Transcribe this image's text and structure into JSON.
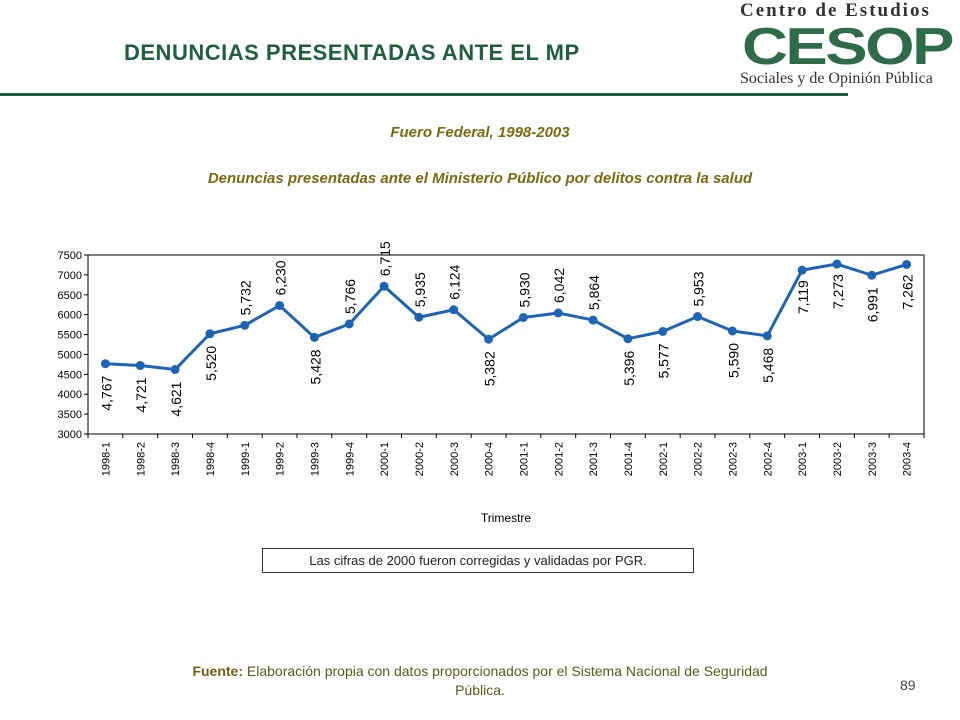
{
  "header": {
    "title": "DENUNCIAS PRESENTADAS ANTE EL MP"
  },
  "logo": {
    "line1": "Centro de Estudios",
    "mark": "CESOP",
    "line2": "Sociales y de Opinión Pública",
    "colors": {
      "mark": "#2e6b4a",
      "text": "#333333"
    }
  },
  "subtitle": "Fuero Federal, 1998-2003",
  "description": "Denuncias presentadas ante el Ministerio Público por delitos contra la salud",
  "chart_data": {
    "type": "line",
    "title": "",
    "xlabel": "Trimestre",
    "ylabel": "",
    "ylim": [
      3000,
      7500
    ],
    "yticks": [
      3000,
      3500,
      4000,
      4500,
      5000,
      5500,
      6000,
      6500,
      7000,
      7500
    ],
    "grid": false,
    "legend": "none",
    "line_color": "#1f64b4",
    "categories": [
      "1998-1",
      "1998-2",
      "1998-3",
      "1998-4",
      "1999-1",
      "1999-2",
      "1999-3",
      "1999-4",
      "2000-1",
      "2000-2",
      "2000-3",
      "2000-4",
      "2001-1",
      "2001-2",
      "2001-3",
      "2001-4",
      "2002-1",
      "2002-2",
      "2002-3",
      "2002-4",
      "2003-1",
      "2003-2",
      "2003-3",
      "2003-4"
    ],
    "values": [
      4767,
      4721,
      4621,
      5520,
      5732,
      6230,
      5428,
      5766,
      6715,
      5935,
      6124,
      5382,
      5930,
      6042,
      5864,
      5396,
      5577,
      5953,
      5590,
      5468,
      7119,
      7273,
      6991,
      7262
    ],
    "data_labels": [
      "4,767",
      "4,721",
      "4,621",
      "5,520",
      "5,732",
      "6,230",
      "5,428",
      "5,766",
      "6,715",
      "5,935",
      "6,124",
      "5,382",
      "5,930",
      "6,042",
      "5,864",
      "5,396",
      "5,577",
      "5,953",
      "5,590",
      "5,468",
      "7,119",
      "7,273",
      "6,991",
      "7,262"
    ]
  },
  "note": "Las cifras de 2000 fueron corregidas y validadas por PGR.",
  "source": {
    "label": "Fuente:",
    "text": " Elaboración propia con datos proporcionados por el Sistema Nacional de Seguridad Pública."
  },
  "page_number": "89"
}
